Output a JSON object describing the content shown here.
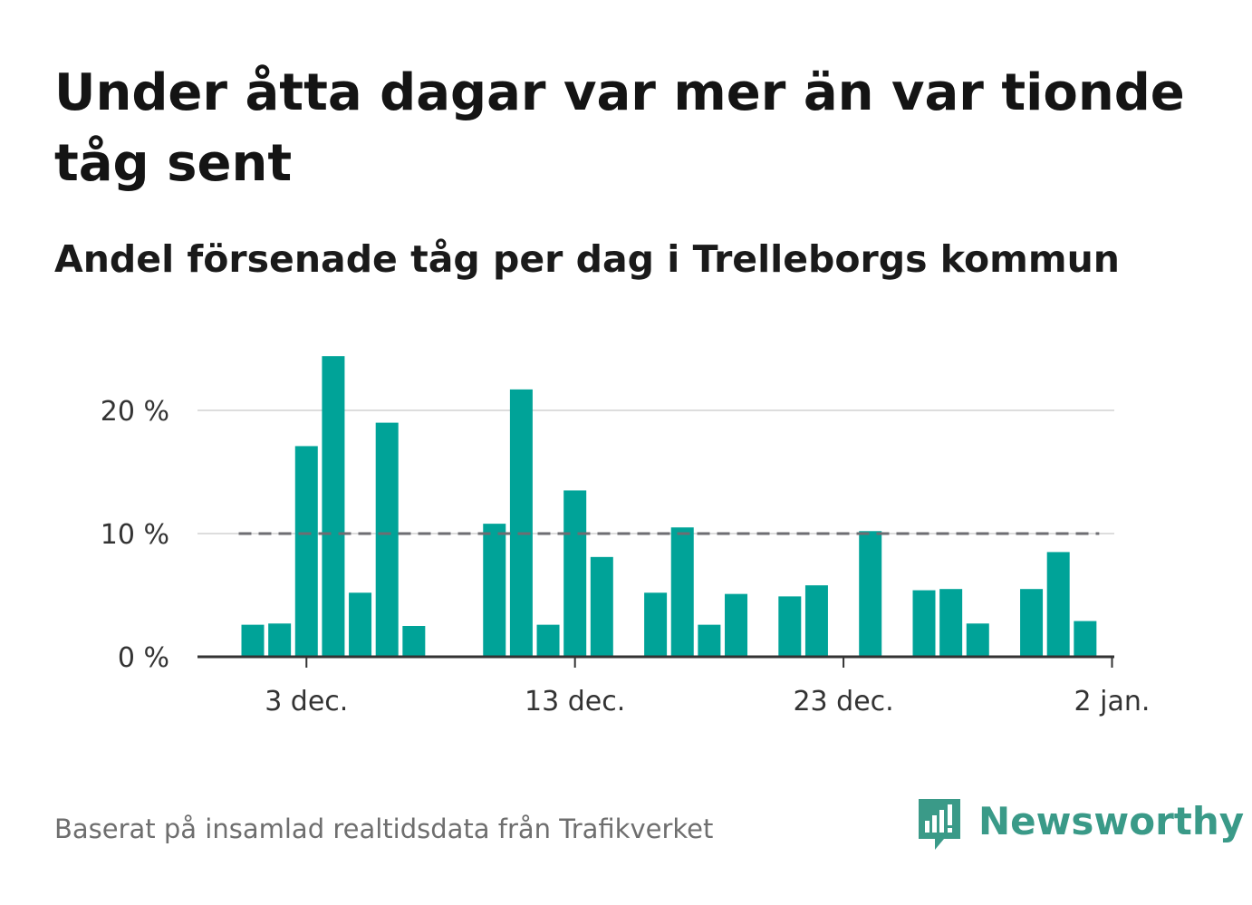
{
  "title": "Under åtta dagar var mer än var tionde tåg sent",
  "subtitle": "Andel försenade tåg per dag i Trelleborgs kommun",
  "footer": "Baserat på insamlad realtidsdata från Trafikverket",
  "logo": {
    "text": "Newsworthy",
    "icon": "newsworthy-logo-icon"
  },
  "colors": {
    "bar": "#00a398",
    "reference_line": "#6d6d72",
    "grid": "#dddddd",
    "axis": "#333333",
    "logo": "#3a9a88"
  },
  "chart_data": {
    "type": "bar",
    "x_axis": "date",
    "x": [
      "2023-12-01",
      "2023-12-02",
      "2023-12-03",
      "2023-12-04",
      "2023-12-05",
      "2023-12-06",
      "2023-12-07",
      "2023-12-08",
      "2023-12-09",
      "2023-12-10",
      "2023-12-11",
      "2023-12-12",
      "2023-12-13",
      "2023-12-14",
      "2023-12-15",
      "2023-12-16",
      "2023-12-17",
      "2023-12-18",
      "2023-12-19",
      "2023-12-20",
      "2023-12-21",
      "2023-12-22",
      "2023-12-23",
      "2023-12-24",
      "2023-12-25",
      "2023-12-26",
      "2023-12-27",
      "2023-12-28",
      "2023-12-29",
      "2023-12-30",
      "2023-12-31",
      "2024-01-01"
    ],
    "values": [
      2.6,
      2.7,
      17.1,
      24.4,
      5.2,
      19.0,
      2.5,
      null,
      null,
      10.8,
      21.7,
      2.6,
      13.5,
      8.1,
      null,
      5.2,
      10.5,
      2.6,
      5.1,
      null,
      4.9,
      5.8,
      null,
      10.2,
      null,
      5.4,
      5.5,
      2.7,
      null,
      5.5,
      8.5,
      2.9
    ],
    "reference_line": {
      "y": 10,
      "style": "dashed"
    },
    "ylim": [
      0,
      25
    ],
    "yticks": [
      0,
      10,
      20
    ],
    "ytick_labels": [
      "0 %",
      "10 %",
      "20 %"
    ],
    "xticks": [
      "2023-12-03",
      "2023-12-13",
      "2023-12-23",
      "2024-01-02"
    ],
    "xtick_labels": [
      "3 dec.",
      "13 dec.",
      "23 dec.",
      "2 jan."
    ],
    "grid": true,
    "legend": "none"
  }
}
